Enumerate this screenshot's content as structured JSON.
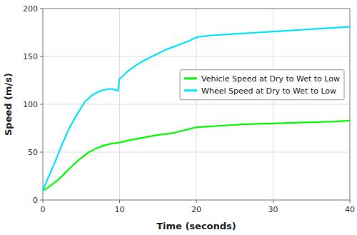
{
  "chart_data": {
    "type": "line",
    "xlabel": "Time (seconds)",
    "ylabel": "Speed (m/s)",
    "xlim": [
      0,
      40
    ],
    "ylim": [
      0,
      200
    ],
    "xticks": [
      0,
      10,
      20,
      30,
      40
    ],
    "yticks": [
      0,
      50,
      100,
      150,
      200
    ],
    "grid": true,
    "legend": "right",
    "series": [
      {
        "name": "Vehicle Speed at Dry to Wet to Low",
        "color": "#00ff00",
        "x": [
          0,
          0.5,
          1,
          2,
          3,
          4,
          5,
          6,
          7,
          8,
          9,
          10,
          11,
          12,
          13,
          14,
          15,
          16,
          17,
          18,
          19,
          20,
          22,
          24,
          26,
          28,
          30,
          32,
          34,
          36,
          38,
          40
        ],
        "values": [
          10,
          12,
          15,
          21,
          29,
          37,
          44,
          50,
          54,
          57,
          59,
          60,
          62,
          63.5,
          65,
          66.5,
          68,
          69,
          70,
          72,
          74,
          76,
          77,
          78,
          79,
          79.5,
          80,
          80.5,
          81,
          81.5,
          82,
          83
        ]
      },
      {
        "name": "Wheel Speed at Dry to Wet to Low",
        "color": "#00e5ff",
        "x": [
          0,
          0.3,
          0.8,
          1.5,
          2.5,
          3.5,
          4.5,
          5.5,
          6.5,
          7.5,
          8.5,
          9.0,
          9.5,
          9.8,
          10.0,
          10.2,
          10.5,
          11,
          12,
          13,
          14,
          15,
          16,
          17,
          18,
          19,
          20,
          22,
          24,
          26,
          28,
          30,
          32,
          34,
          36,
          38,
          40
        ],
        "values": [
          10,
          16,
          25,
          38,
          58,
          76,
          90,
          103,
          110,
          114,
          116,
          116,
          115,
          114,
          127,
          128,
          130,
          134,
          140,
          145,
          149,
          153,
          157,
          160,
          163,
          166,
          170,
          172,
          173,
          174,
          175,
          176,
          177,
          178,
          179,
          180,
          181
        ]
      }
    ]
  }
}
